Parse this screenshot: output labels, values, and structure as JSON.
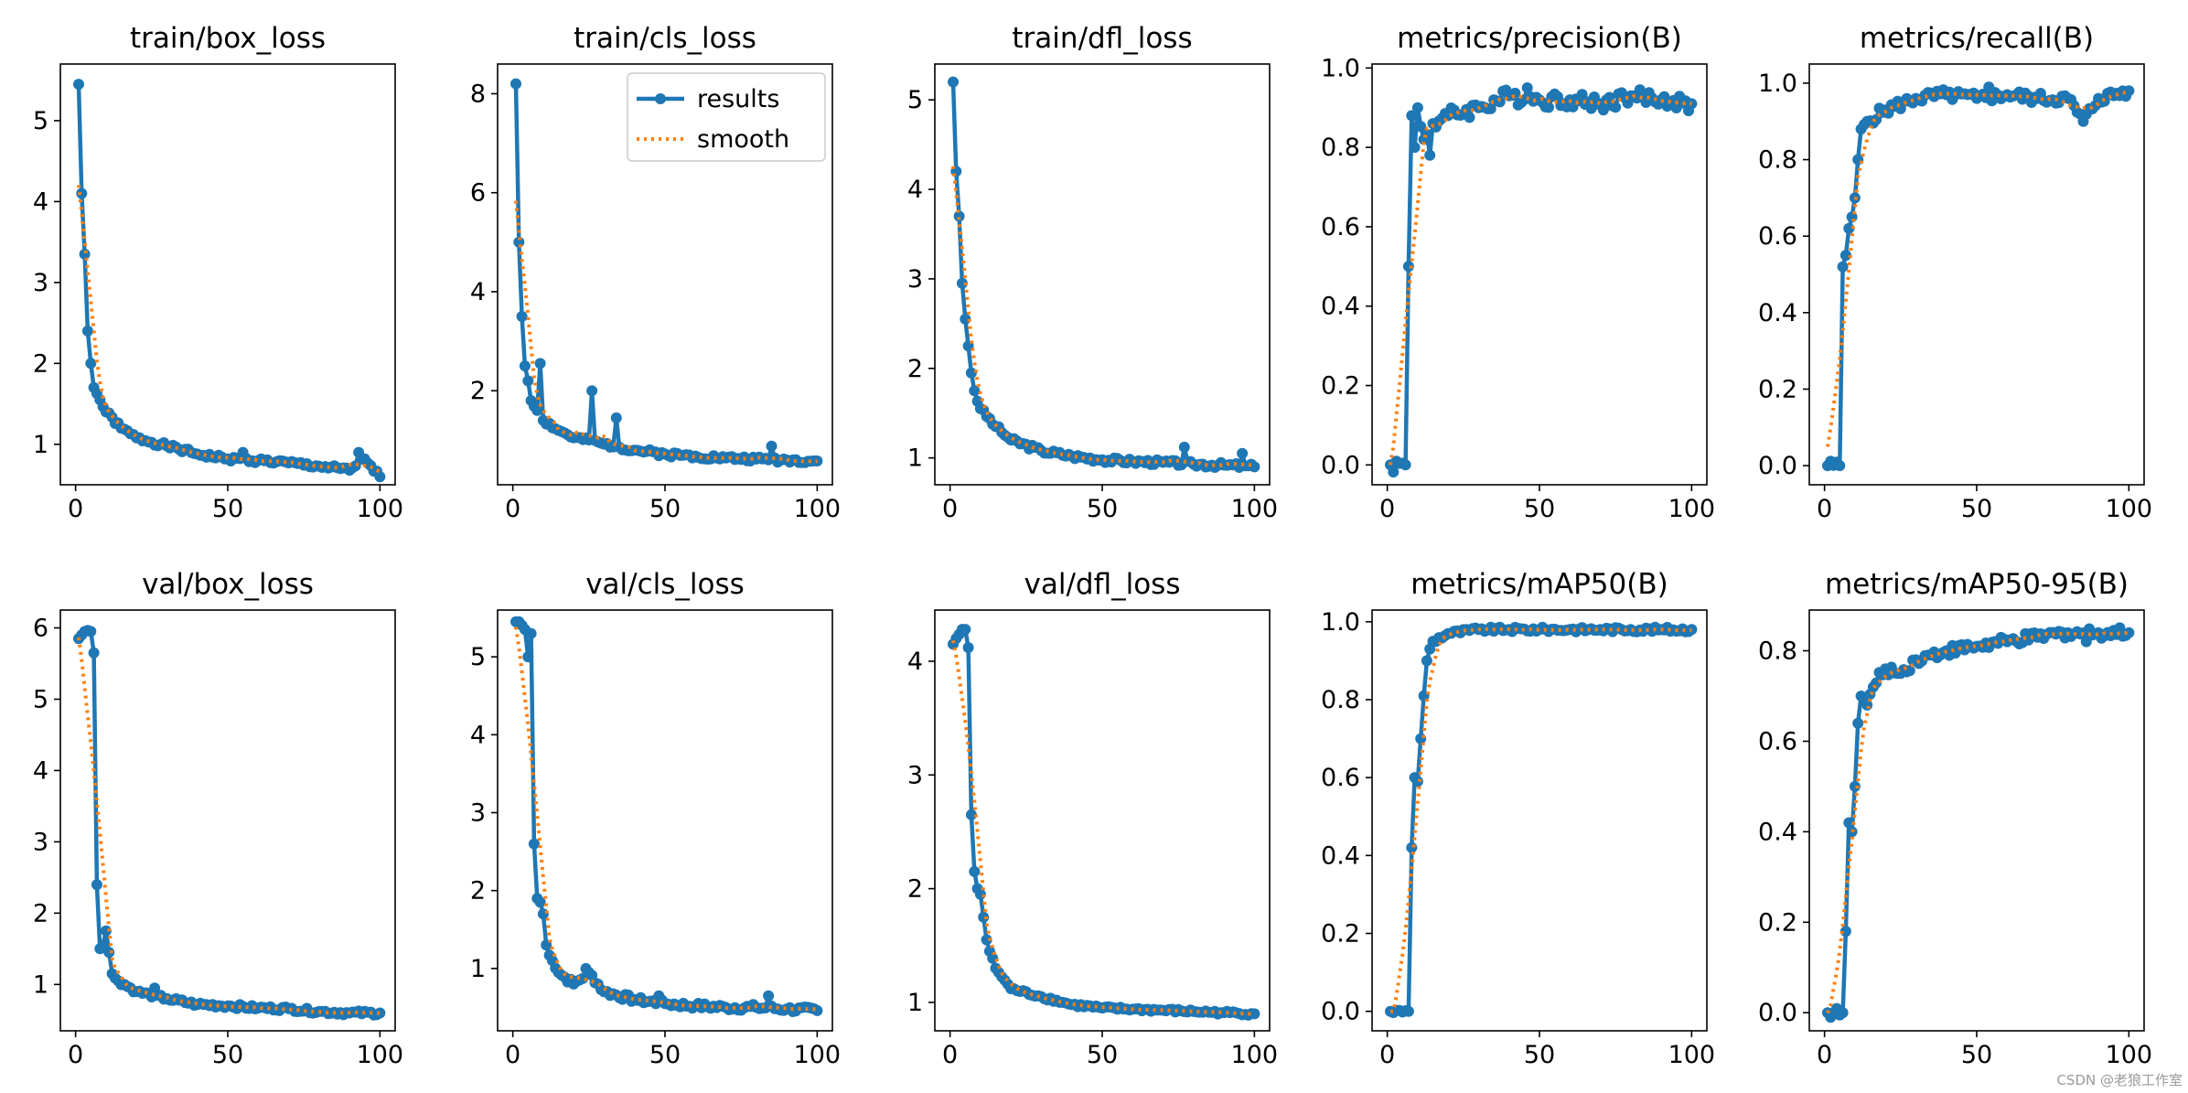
{
  "legend": {
    "results_label": "results",
    "smooth_label": "smooth"
  },
  "watermark": "CSDN @老狼工作室",
  "colors": {
    "results": "#1f77b4",
    "smooth": "#ff7f0e"
  },
  "chart_data": [
    {
      "type": "line",
      "title": "train/box_loss",
      "xlim": [
        -5,
        105
      ],
      "ylim": [
        0.5,
        5.7
      ],
      "xticks": [
        0,
        50,
        100
      ],
      "yticks": [
        1,
        2,
        3,
        4,
        5
      ],
      "ytick_labels": [
        "1",
        "2",
        "3",
        "4",
        "5"
      ],
      "anchors": [
        [
          1,
          5.45
        ],
        [
          2,
          4.1
        ],
        [
          3,
          3.35
        ],
        [
          4,
          2.4
        ],
        [
          5,
          2.0
        ],
        [
          6,
          1.7
        ],
        [
          8,
          1.55
        ],
        [
          10,
          1.4
        ],
        [
          15,
          1.2
        ],
        [
          20,
          1.08
        ],
        [
          30,
          0.98
        ],
        [
          40,
          0.88
        ],
        [
          50,
          0.82
        ],
        [
          60,
          0.8
        ],
        [
          70,
          0.77
        ],
        [
          80,
          0.73
        ],
        [
          90,
          0.68
        ],
        [
          95,
          0.82
        ],
        [
          100,
          0.6
        ]
      ],
      "spikes": [
        [
          55,
          0.9
        ],
        [
          93,
          0.9
        ]
      ],
      "noise": 0.03,
      "seed": 1
    },
    {
      "type": "line",
      "title": "train/cls_loss",
      "xlim": [
        -5,
        105
      ],
      "ylim": [
        0.1,
        8.6
      ],
      "xticks": [
        0,
        50,
        100
      ],
      "yticks": [
        2,
        4,
        6,
        8
      ],
      "ytick_labels": [
        "2",
        "4",
        "6",
        "8"
      ],
      "anchors": [
        [
          1,
          8.2
        ],
        [
          2,
          5.0
        ],
        [
          3,
          3.5
        ],
        [
          4,
          2.5
        ],
        [
          5,
          2.2
        ],
        [
          6,
          1.8
        ],
        [
          8,
          1.6
        ],
        [
          10,
          1.4
        ],
        [
          15,
          1.2
        ],
        [
          20,
          1.05
        ],
        [
          30,
          0.92
        ],
        [
          40,
          0.8
        ],
        [
          50,
          0.72
        ],
        [
          60,
          0.68
        ],
        [
          70,
          0.64
        ],
        [
          80,
          0.62
        ],
        [
          90,
          0.6
        ],
        [
          100,
          0.58
        ]
      ],
      "spikes": [
        [
          9,
          2.55
        ],
        [
          26,
          2.0
        ],
        [
          34,
          1.45
        ],
        [
          85,
          0.88
        ]
      ],
      "noise": 0.05,
      "seed": 2,
      "legend": true
    },
    {
      "type": "line",
      "title": "train/dfl_loss",
      "xlim": [
        -5,
        105
      ],
      "ylim": [
        0.7,
        5.4
      ],
      "xticks": [
        0,
        50,
        100
      ],
      "yticks": [
        1,
        2,
        3,
        4,
        5
      ],
      "ytick_labels": [
        "1",
        "2",
        "3",
        "4",
        "5"
      ],
      "anchors": [
        [
          1,
          5.2
        ],
        [
          2,
          4.2
        ],
        [
          3,
          3.7
        ],
        [
          4,
          2.95
        ],
        [
          5,
          2.55
        ],
        [
          6,
          2.25
        ],
        [
          7,
          1.95
        ],
        [
          8,
          1.75
        ],
        [
          10,
          1.55
        ],
        [
          15,
          1.35
        ],
        [
          20,
          1.2
        ],
        [
          30,
          1.08
        ],
        [
          40,
          1.02
        ],
        [
          50,
          0.98
        ],
        [
          60,
          0.96
        ],
        [
          70,
          0.95
        ],
        [
          80,
          0.93
        ],
        [
          90,
          0.92
        ],
        [
          100,
          0.9
        ]
      ],
      "spikes": [
        [
          77,
          1.12
        ],
        [
          96,
          1.05
        ]
      ],
      "noise": 0.03,
      "seed": 3
    },
    {
      "type": "line",
      "title": "metrics/precision(B)",
      "xlim": [
        -5,
        105
      ],
      "ylim": [
        -0.05,
        1.01
      ],
      "xticks": [
        0,
        50,
        100
      ],
      "yticks": [
        0,
        0.2,
        0.4,
        0.6,
        0.8,
        1.0
      ],
      "ytick_labels": [
        "0.0",
        "0.2",
        "0.4",
        "0.6",
        "0.8",
        "1.0"
      ],
      "anchors": [
        [
          1,
          0.0
        ],
        [
          6,
          0.0
        ],
        [
          7,
          0.5
        ],
        [
          8,
          0.88
        ],
        [
          9,
          0.8
        ],
        [
          10,
          0.9
        ],
        [
          12,
          0.82
        ],
        [
          15,
          0.86
        ],
        [
          20,
          0.88
        ],
        [
          30,
          0.9
        ],
        [
          40,
          0.93
        ],
        [
          50,
          0.92
        ],
        [
          60,
          0.92
        ],
        [
          70,
          0.91
        ],
        [
          80,
          0.93
        ],
        [
          90,
          0.92
        ],
        [
          100,
          0.91
        ]
      ],
      "spikes": [
        [
          14,
          0.78
        ],
        [
          46,
          0.95
        ]
      ],
      "noise": 0.02,
      "seed": 4
    },
    {
      "type": "line",
      "title": "metrics/recall(B)",
      "xlim": [
        -5,
        105
      ],
      "ylim": [
        -0.05,
        1.05
      ],
      "xticks": [
        0,
        50,
        100
      ],
      "yticks": [
        0,
        0.2,
        0.4,
        0.6,
        0.8,
        1.0
      ],
      "ytick_labels": [
        "0.0",
        "0.2",
        "0.4",
        "0.6",
        "0.8",
        "1.0"
      ],
      "anchors": [
        [
          1,
          0.0
        ],
        [
          5,
          0.0
        ],
        [
          6,
          0.52
        ],
        [
          7,
          0.55
        ],
        [
          8,
          0.62
        ],
        [
          9,
          0.65
        ],
        [
          10,
          0.7
        ],
        [
          11,
          0.8
        ],
        [
          12,
          0.88
        ],
        [
          14,
          0.9
        ],
        [
          20,
          0.93
        ],
        [
          30,
          0.96
        ],
        [
          40,
          0.97
        ],
        [
          50,
          0.96
        ],
        [
          60,
          0.97
        ],
        [
          70,
          0.96
        ],
        [
          80,
          0.96
        ],
        [
          85,
          0.9
        ],
        [
          90,
          0.96
        ],
        [
          100,
          0.98
        ]
      ],
      "spikes": [
        [
          54,
          0.99
        ]
      ],
      "noise": 0.015,
      "seed": 5
    },
    {
      "type": "line",
      "title": "val/box_loss",
      "xlim": [
        -5,
        105
      ],
      "ylim": [
        0.35,
        6.25
      ],
      "xticks": [
        0,
        50,
        100
      ],
      "yticks": [
        1,
        2,
        3,
        4,
        5,
        6
      ],
      "ytick_labels": [
        "1",
        "2",
        "3",
        "4",
        "5",
        "6"
      ],
      "anchors": [
        [
          1,
          5.85
        ],
        [
          2,
          5.9
        ],
        [
          3,
          5.95
        ],
        [
          5,
          5.95
        ],
        [
          6,
          5.65
        ],
        [
          7,
          2.4
        ],
        [
          8,
          1.5
        ],
        [
          9,
          1.55
        ],
        [
          10,
          1.75
        ],
        [
          11,
          1.45
        ],
        [
          12,
          1.15
        ],
        [
          14,
          1.05
        ],
        [
          20,
          0.9
        ],
        [
          30,
          0.8
        ],
        [
          40,
          0.72
        ],
        [
          50,
          0.7
        ],
        [
          60,
          0.67
        ],
        [
          70,
          0.66
        ],
        [
          80,
          0.62
        ],
        [
          90,
          0.6
        ],
        [
          100,
          0.6
        ]
      ],
      "spikes": [
        [
          26,
          0.95
        ]
      ],
      "noise": 0.03,
      "seed": 6
    },
    {
      "type": "line",
      "title": "val/cls_loss",
      "xlim": [
        -5,
        105
      ],
      "ylim": [
        0.2,
        5.6
      ],
      "xticks": [
        0,
        50,
        100
      ],
      "yticks": [
        1,
        2,
        3,
        4,
        5
      ],
      "ytick_labels": [
        "1",
        "2",
        "3",
        "4",
        "5"
      ],
      "anchors": [
        [
          1,
          5.45
        ],
        [
          2,
          5.45
        ],
        [
          4,
          5.35
        ],
        [
          5,
          5.0
        ],
        [
          6,
          5.3
        ],
        [
          7,
          2.6
        ],
        [
          8,
          1.9
        ],
        [
          9,
          1.85
        ],
        [
          10,
          1.7
        ],
        [
          11,
          1.3
        ],
        [
          13,
          1.1
        ],
        [
          15,
          0.95
        ],
        [
          20,
          0.8
        ],
        [
          25,
          0.95
        ],
        [
          30,
          0.7
        ],
        [
          40,
          0.6
        ],
        [
          50,
          0.55
        ],
        [
          60,
          0.52
        ],
        [
          70,
          0.5
        ],
        [
          80,
          0.5
        ],
        [
          90,
          0.48
        ],
        [
          100,
          0.46
        ]
      ],
      "spikes": [
        [
          24,
          1.0
        ],
        [
          48,
          0.65
        ],
        [
          84,
          0.65
        ]
      ],
      "noise": 0.04,
      "seed": 7
    },
    {
      "type": "line",
      "title": "val/dfl_loss",
      "xlim": [
        -5,
        105
      ],
      "ylim": [
        0.75,
        4.45
      ],
      "xticks": [
        0,
        50,
        100
      ],
      "yticks": [
        1,
        2,
        3,
        4
      ],
      "ytick_labels": [
        "1",
        "2",
        "3",
        "4"
      ],
      "anchors": [
        [
          1,
          4.15
        ],
        [
          2,
          4.2
        ],
        [
          4,
          4.28
        ],
        [
          5,
          4.28
        ],
        [
          6,
          4.12
        ],
        [
          7,
          2.65
        ],
        [
          8,
          2.15
        ],
        [
          9,
          2.0
        ],
        [
          10,
          1.95
        ],
        [
          11,
          1.75
        ],
        [
          12,
          1.55
        ],
        [
          13,
          1.45
        ],
        [
          15,
          1.3
        ],
        [
          20,
          1.12
        ],
        [
          30,
          1.05
        ],
        [
          40,
          0.98
        ],
        [
          50,
          0.95
        ],
        [
          60,
          0.94
        ],
        [
          70,
          0.93
        ],
        [
          80,
          0.92
        ],
        [
          90,
          0.91
        ],
        [
          100,
          0.9
        ]
      ],
      "spikes": [],
      "noise": 0.015,
      "seed": 8
    },
    {
      "type": "line",
      "title": "metrics/mAP50(B)",
      "xlim": [
        -5,
        105
      ],
      "ylim": [
        -0.05,
        1.03
      ],
      "xticks": [
        0,
        50,
        100
      ],
      "yticks": [
        0,
        0.2,
        0.4,
        0.6,
        0.8,
        1.0
      ],
      "ytick_labels": [
        "0.0",
        "0.2",
        "0.4",
        "0.6",
        "0.8",
        "1.0"
      ],
      "anchors": [
        [
          1,
          0.0
        ],
        [
          7,
          0.0
        ],
        [
          8,
          0.42
        ],
        [
          9,
          0.6
        ],
        [
          10,
          0.59
        ],
        [
          11,
          0.7
        ],
        [
          12,
          0.81
        ],
        [
          13,
          0.9
        ],
        [
          14,
          0.93
        ],
        [
          15,
          0.95
        ],
        [
          20,
          0.97
        ],
        [
          30,
          0.98
        ],
        [
          40,
          0.98
        ],
        [
          50,
          0.98
        ],
        [
          60,
          0.98
        ],
        [
          70,
          0.98
        ],
        [
          80,
          0.98
        ],
        [
          90,
          0.98
        ],
        [
          100,
          0.98
        ]
      ],
      "spikes": [],
      "noise": 0.006,
      "seed": 9
    },
    {
      "type": "line",
      "title": "metrics/mAP50-95(B)",
      "xlim": [
        -5,
        105
      ],
      "ylim": [
        -0.04,
        0.89
      ],
      "xticks": [
        0,
        50,
        100
      ],
      "yticks": [
        0,
        0.2,
        0.4,
        0.6,
        0.8
      ],
      "ytick_labels": [
        "0.0",
        "0.2",
        "0.4",
        "0.6",
        "0.8"
      ],
      "anchors": [
        [
          1,
          0.0
        ],
        [
          6,
          0.0
        ],
        [
          7,
          0.18
        ],
        [
          8,
          0.42
        ],
        [
          9,
          0.4
        ],
        [
          10,
          0.5
        ],
        [
          11,
          0.64
        ],
        [
          12,
          0.7
        ],
        [
          14,
          0.68
        ],
        [
          16,
          0.72
        ],
        [
          20,
          0.76
        ],
        [
          25,
          0.75
        ],
        [
          30,
          0.78
        ],
        [
          40,
          0.8
        ],
        [
          50,
          0.81
        ],
        [
          60,
          0.82
        ],
        [
          70,
          0.83
        ],
        [
          80,
          0.84
        ],
        [
          90,
          0.84
        ],
        [
          100,
          0.84
        ]
      ],
      "spikes": [
        [
          86,
          0.82
        ]
      ],
      "noise": 0.012,
      "seed": 10
    }
  ]
}
